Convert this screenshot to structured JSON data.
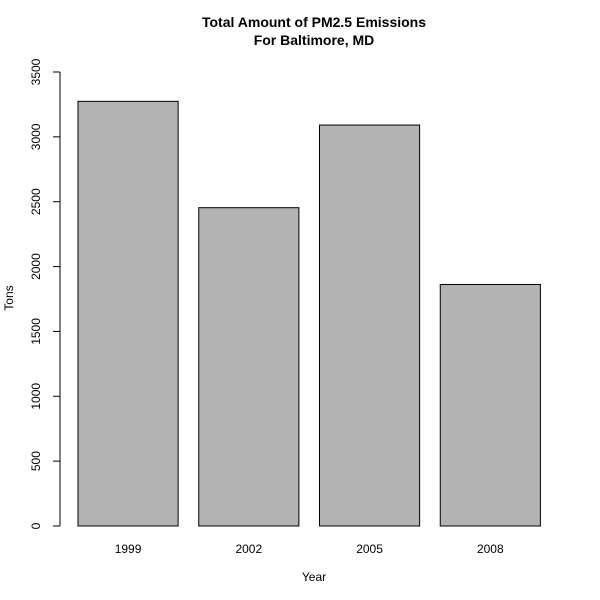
{
  "chart_data": {
    "type": "bar",
    "title": "Total Amount of PM2.5 Emissions",
    "subtitle": "For Baltimore, MD",
    "xlabel": "Year",
    "ylabel": "Tons",
    "categories": [
      "1999",
      "2002",
      "2005",
      "2008"
    ],
    "values": [
      3274,
      2454,
      3091,
      1862
    ],
    "ylim": [
      0,
      3500
    ],
    "yticks": [
      "0",
      "500",
      "1000",
      "1500",
      "2000",
      "2500",
      "3000",
      "3500"
    ],
    "bar_color": "#b3b3b3",
    "bar_border_color": "#000000",
    "grid": false,
    "legend": "none"
  }
}
